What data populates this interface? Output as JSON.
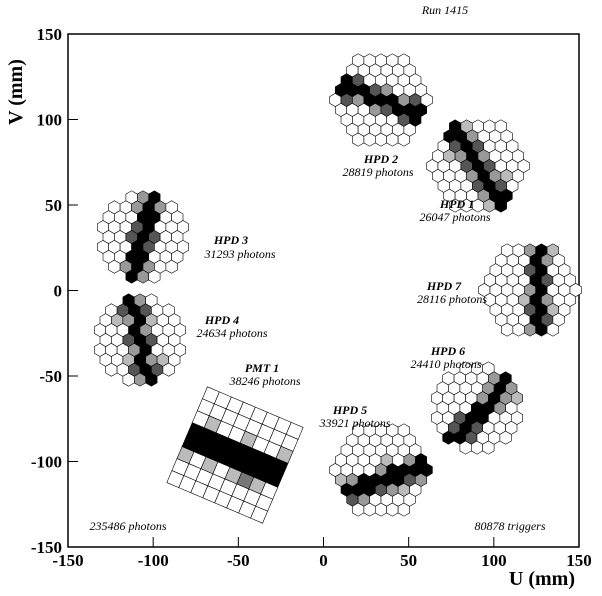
{
  "chart_data": {
    "type": "scatter",
    "xlabel": "U (mm)",
    "ylabel": "V (mm)",
    "xlim": [
      -150,
      150
    ],
    "xticks": [
      -150,
      -100,
      -50,
      0,
      50,
      100,
      150
    ],
    "ylim": [
      -150,
      150
    ],
    "yticks": [
      -150,
      -100,
      -50,
      0,
      50,
      100,
      150
    ],
    "annotations": [
      "Run 1415",
      "HPD 2",
      "28819 photons",
      "HPD 1",
      "26047 photons",
      "HPD 3",
      "31293 photons",
      "HPD 7",
      "28116 photons",
      "HPD 4",
      "24634 photons",
      "PMT 1",
      "38246 photons",
      "HPD 6",
      "24410 photons",
      "HPD 5",
      "33921 photons",
      "235486 photons",
      "80878 triggers"
    ]
  }
}
